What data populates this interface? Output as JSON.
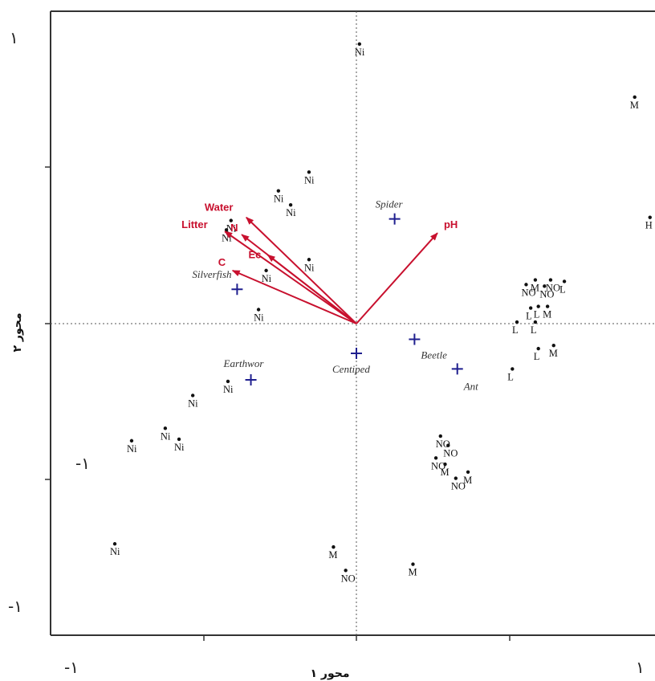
{
  "colors": {
    "arrow": "#c8102e",
    "species": "#1f1f8f",
    "points": "#111111",
    "frame": "#333333",
    "reference": "#555555"
  },
  "axes": {
    "x_title": "محور ۱",
    "y_title": "محور ۲"
  },
  "corner_labels": {
    "top_left": "۱",
    "left_mid": "-۱",
    "bottom_left_y": "-۱",
    "bottom_left_x": "-۱",
    "bottom_right": "۱"
  },
  "chart_data": {
    "type": "scatter",
    "title": "",
    "xlabel": "محور ۱",
    "ylabel": "محور ۲",
    "xlim": [
      -1,
      1
    ],
    "ylim": [
      -1,
      1
    ],
    "grid": false,
    "reference_lines": [
      {
        "axis": "x",
        "value": 0
      },
      {
        "axis": "y",
        "value": 0
      }
    ],
    "environmental_vectors": [
      {
        "name": "Water",
        "x": -0.72,
        "y": 0.68
      },
      {
        "name": "Litter",
        "x": -0.86,
        "y": 0.59
      },
      {
        "name": "N",
        "x": -0.75,
        "y": 0.57
      },
      {
        "name": "Ec",
        "x": -0.58,
        "y": 0.44
      },
      {
        "name": "C",
        "x": -0.81,
        "y": 0.34
      },
      {
        "name": "pH",
        "x": 0.53,
        "y": 0.58
      }
    ],
    "species": [
      {
        "name": "Spider",
        "x": 0.25,
        "y": 0.67
      },
      {
        "name": "Silverfish",
        "x": -0.78,
        "y": 0.22
      },
      {
        "name": "Earthwor",
        "x": -0.69,
        "y": -0.36
      },
      {
        "name": "Centiped",
        "x": 0.0,
        "y": -0.19
      },
      {
        "name": "Beetle",
        "x": 0.38,
        "y": -0.1
      },
      {
        "name": "Ant",
        "x": 0.66,
        "y": -0.29
      }
    ],
    "sites": [
      {
        "label": "Ni",
        "x": 0.02,
        "y": 1.79
      },
      {
        "label": "Ni",
        "x": -0.31,
        "y": 0.97
      },
      {
        "label": "Ni",
        "x": -0.51,
        "y": 0.85
      },
      {
        "label": "Ni",
        "x": -0.43,
        "y": 0.76
      },
      {
        "label": "Ni",
        "x": -0.82,
        "y": 0.66
      },
      {
        "label": "Ni",
        "x": -0.85,
        "y": 0.6
      },
      {
        "label": "Ni",
        "x": -0.31,
        "y": 0.41
      },
      {
        "label": "Ni",
        "x": -0.59,
        "y": 0.34
      },
      {
        "label": "Ni",
        "x": -0.64,
        "y": 0.09
      },
      {
        "label": "Ni",
        "x": -0.84,
        "y": -0.37
      },
      {
        "label": "Ni",
        "x": -1.07,
        "y": -0.46
      },
      {
        "label": "Ni",
        "x": -1.25,
        "y": -0.67
      },
      {
        "label": "Ni",
        "x": -1.16,
        "y": -0.74
      },
      {
        "label": "Ni",
        "x": -1.47,
        "y": -0.75
      },
      {
        "label": "Ni",
        "x": -1.58,
        "y": -1.41
      },
      {
        "label": "M",
        "x": 1.82,
        "y": 1.45
      },
      {
        "label": "H",
        "x": 1.92,
        "y": 0.68
      },
      {
        "label": "M",
        "x": 1.17,
        "y": 0.28
      },
      {
        "label": "NO",
        "x": 1.27,
        "y": 0.28
      },
      {
        "label": "L",
        "x": 1.36,
        "y": 0.27
      },
      {
        "label": "NO",
        "x": 1.11,
        "y": 0.25
      },
      {
        "label": "NO",
        "x": 1.23,
        "y": 0.24
      },
      {
        "label": "L",
        "x": 1.14,
        "y": 0.1
      },
      {
        "label": "L",
        "x": 1.19,
        "y": 0.11
      },
      {
        "label": "M",
        "x": 1.25,
        "y": 0.11
      },
      {
        "label": "L",
        "x": 1.05,
        "y": 0.01
      },
      {
        "label": "L",
        "x": 1.17,
        "y": 0.01
      },
      {
        "label": "L",
        "x": 1.19,
        "y": -0.16
      },
      {
        "label": "M",
        "x": 1.29,
        "y": -0.14
      },
      {
        "label": "L",
        "x": 1.02,
        "y": -0.29
      },
      {
        "label": "NO",
        "x": 0.55,
        "y": -0.72
      },
      {
        "label": "NO",
        "x": 0.6,
        "y": -0.78
      },
      {
        "label": "NO",
        "x": 0.52,
        "y": -0.86
      },
      {
        "label": "M",
        "x": 0.58,
        "y": -0.9
      },
      {
        "label": "M",
        "x": 0.73,
        "y": -0.95
      },
      {
        "label": "NO",
        "x": 0.65,
        "y": -0.99
      },
      {
        "label": "M",
        "x": -0.15,
        "y": -1.43
      },
      {
        "label": "NO",
        "x": -0.07,
        "y": -1.58
      },
      {
        "label": "M",
        "x": 0.37,
        "y": -1.54
      }
    ]
  }
}
